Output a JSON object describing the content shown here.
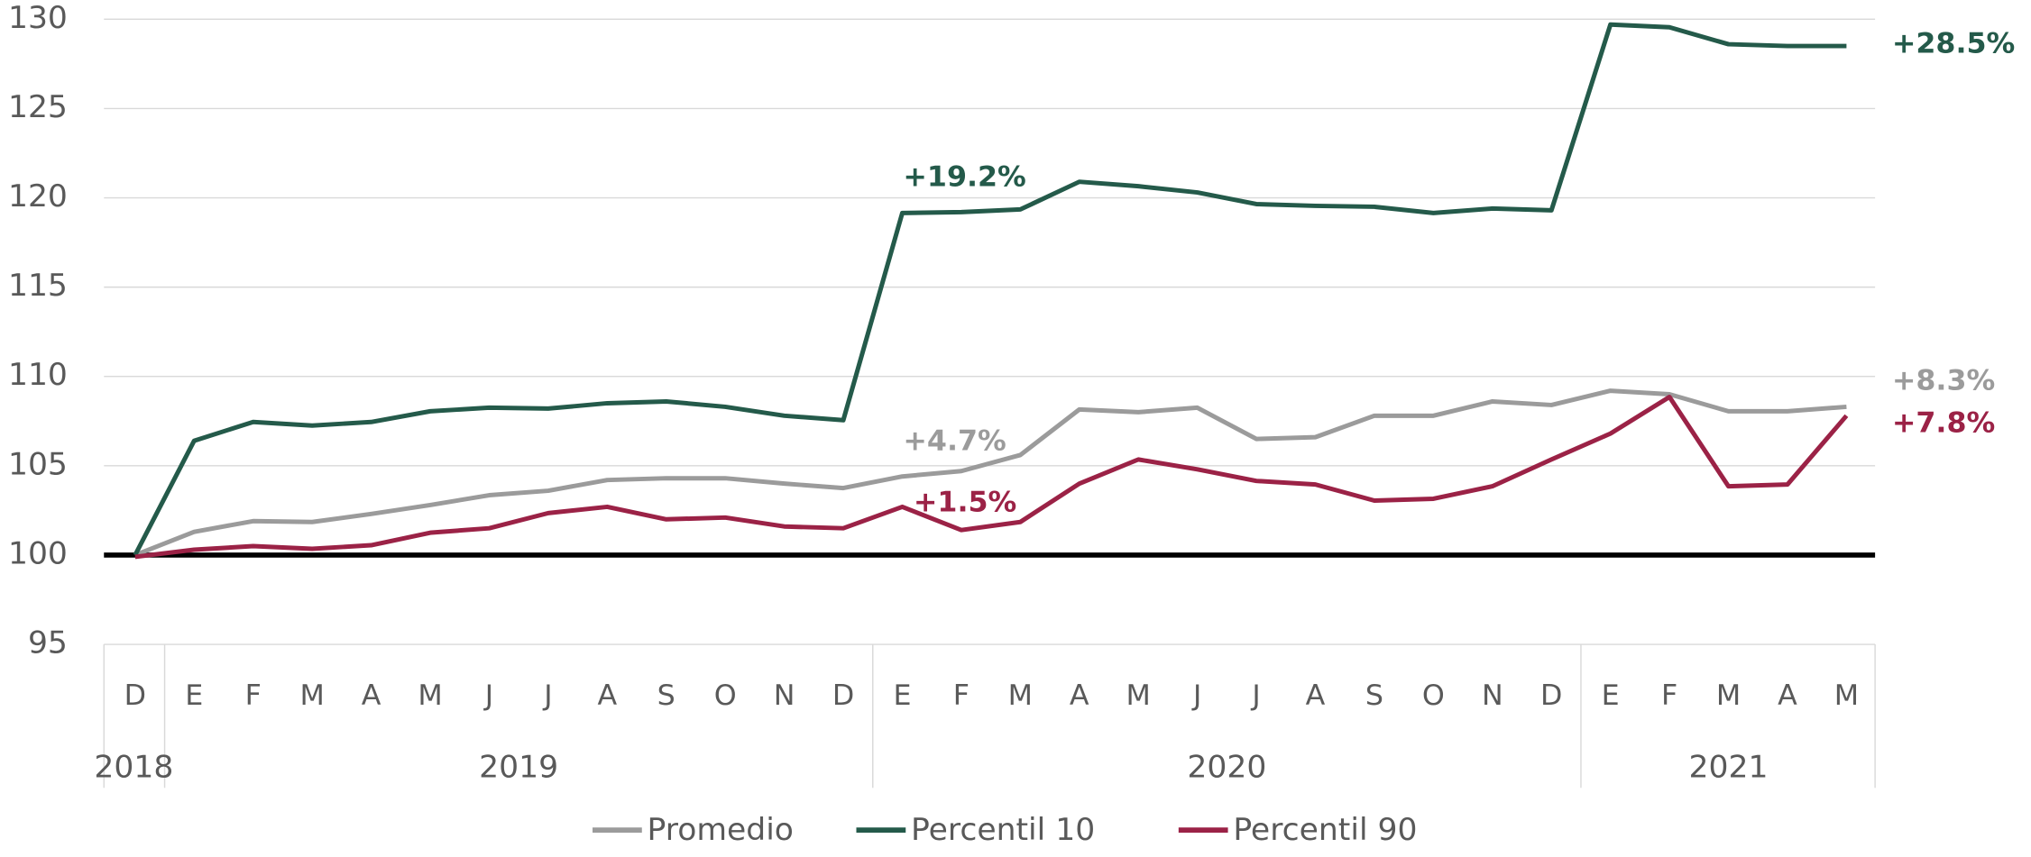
{
  "chart_data": {
    "type": "line",
    "categories": [
      "D",
      "E",
      "F",
      "M",
      "A",
      "M",
      "J",
      "J",
      "A",
      "S",
      "O",
      "N",
      "D",
      "E",
      "F",
      "M",
      "A",
      "M",
      "J",
      "J",
      "A",
      "S",
      "O",
      "N",
      "D",
      "E",
      "F",
      "M",
      "A",
      "M"
    ],
    "years": [
      "2018",
      "2019",
      "2020",
      "2021"
    ],
    "series": [
      {
        "name": "Promedio",
        "color": "#9b9b9b",
        "values": [
          100,
          101.3,
          101.9,
          101.85,
          102.3,
          102.8,
          103.35,
          103.6,
          104.2,
          104.3,
          104.3,
          104.0,
          103.75,
          104.4,
          104.7,
          105.6,
          108.15,
          108.0,
          108.25,
          106.5,
          106.6,
          107.8,
          107.8,
          108.6,
          108.4,
          109.2,
          109.0,
          108.05,
          108.05,
          108.3
        ]
      },
      {
        "name": "Percentil 10",
        "color": "#245a4a",
        "values": [
          100,
          106.4,
          107.45,
          107.25,
          107.45,
          108.05,
          108.25,
          108.2,
          108.5,
          108.6,
          108.3,
          107.8,
          107.55,
          119.15,
          119.2,
          119.35,
          120.9,
          120.65,
          120.3,
          119.65,
          119.55,
          119.5,
          119.15,
          119.4,
          119.3,
          129.7,
          129.55,
          128.6,
          128.5,
          128.5
        ]
      },
      {
        "name": "Percentil 90",
        "color": "#9b2246",
        "values": [
          99.9,
          100.3,
          100.5,
          100.35,
          100.55,
          101.25,
          101.5,
          102.35,
          102.7,
          102.0,
          102.1,
          101.6,
          101.5,
          102.7,
          101.4,
          101.85,
          104.0,
          105.35,
          104.8,
          104.15,
          103.95,
          103.05,
          103.15,
          103.85,
          105.35,
          106.8,
          108.85,
          103.85,
          103.95,
          107.8
        ]
      }
    ],
    "ylim": [
      95,
      130
    ],
    "yticks": [
      95,
      100,
      105,
      110,
      115,
      120,
      125,
      130
    ],
    "grid": true,
    "reference_line": 100,
    "annotations": [
      {
        "text": "+19.2%",
        "color": "#245a4a"
      },
      {
        "text": "+4.7%",
        "color": "#9b9b9b"
      },
      {
        "text": "+1.5%",
        "color": "#9b2246"
      },
      {
        "text": "+28.5%",
        "color": "#245a4a"
      },
      {
        "text": "+8.3%",
        "color": "#9b9b9b"
      },
      {
        "text": "+7.8%",
        "color": "#9b2246"
      }
    ],
    "legend": "bottom"
  }
}
